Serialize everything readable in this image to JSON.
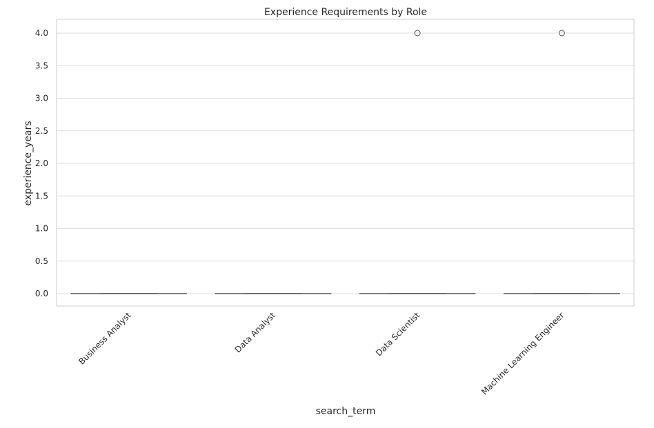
{
  "chart_data": {
    "type": "box",
    "title": "Experience Requirements by Role",
    "xlabel": "search_term",
    "ylabel": "experience_years",
    "categories": [
      "Business Analyst",
      "Data Analyst",
      "Data Scientist",
      "Machine Learning Engineer"
    ],
    "boxes": [
      {
        "category": "Business Analyst",
        "min": 0,
        "q1": 0,
        "median": 0,
        "q3": 0,
        "max": 0,
        "outliers": []
      },
      {
        "category": "Data Analyst",
        "min": 0,
        "q1": 0,
        "median": 0,
        "q3": 0,
        "max": 0,
        "outliers": []
      },
      {
        "category": "Data Scientist",
        "min": 0,
        "q1": 0,
        "median": 0,
        "q3": 0,
        "max": 0,
        "outliers": [
          4.0
        ]
      },
      {
        "category": "Machine Learning Engineer",
        "min": 0,
        "q1": 0,
        "median": 0,
        "q3": 0,
        "max": 0,
        "outliers": [
          4.0
        ]
      }
    ],
    "ylim": [
      -0.2,
      4.2
    ],
    "yticks": [
      0.0,
      0.5,
      1.0,
      1.5,
      2.0,
      2.5,
      3.0,
      3.5,
      4.0
    ],
    "ytick_labels": [
      "0.0",
      "0.5",
      "1.0",
      "1.5",
      "2.0",
      "2.5",
      "3.0",
      "3.5",
      "4.0"
    ],
    "grid": true,
    "x_tick_rotation": 45,
    "colors": {
      "grid": "#dddddd",
      "frame": "#cccccc",
      "box_line": "#6e6e6e",
      "outlier": "#4d4d4d",
      "text": "#262626"
    }
  }
}
